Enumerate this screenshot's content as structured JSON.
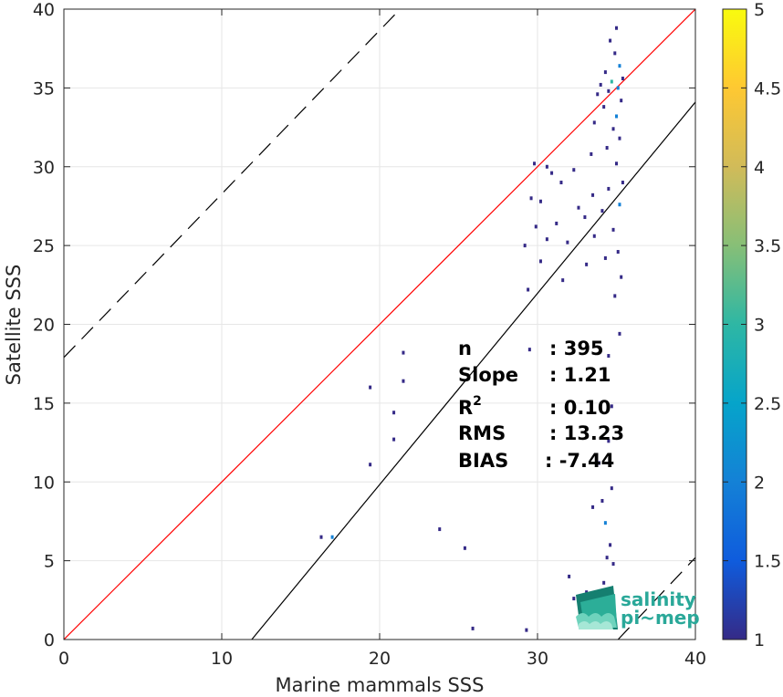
{
  "chart_data": {
    "type": "scatter",
    "xlabel": "Marine mammals SSS",
    "ylabel": "Satellite SSS",
    "xlim": [
      0,
      40
    ],
    "ylim": [
      0,
      40
    ],
    "xticks": [
      0,
      10,
      20,
      30,
      40
    ],
    "yticks": [
      0,
      5,
      10,
      15,
      20,
      25,
      30,
      35,
      40
    ],
    "grid": true,
    "reference_lines": [
      {
        "kind": "identity",
        "color": "#ff0000",
        "style": "solid",
        "x": [
          0,
          40
        ],
        "y": [
          0,
          40
        ]
      },
      {
        "kind": "fit",
        "color": "#000000",
        "style": "solid",
        "x": [
          11.9,
          40
        ],
        "y": [
          0,
          34.1
        ]
      },
      {
        "kind": "upper-bound",
        "color": "#000000",
        "style": "dashed",
        "x": [
          0,
          21.3
        ],
        "y": [
          17.9,
          40
        ]
      },
      {
        "kind": "lower-bound",
        "color": "#000000",
        "style": "dashed",
        "x": [
          35.1,
          40
        ],
        "y": [
          0,
          5.2
        ]
      }
    ],
    "stats": [
      {
        "label": "n",
        "value": ": 395"
      },
      {
        "label": "Slope",
        "value": ": 1.21"
      },
      {
        "label": "R",
        "sup": "2",
        "value": ": 0.10"
      },
      {
        "label": "RMS",
        "value": ": 13.23"
      },
      {
        "label": "BIAS",
        "value": ": -7.44"
      }
    ],
    "colorbar": {
      "min": 1,
      "max": 5,
      "ticks": [
        "1",
        "1.5",
        "2",
        "2.5",
        "3",
        "3.5",
        "4",
        "4.5",
        "5"
      ],
      "colormap": "parula"
    },
    "points": [
      [
        35.0,
        38.8,
        1
      ],
      [
        34.6,
        38.0,
        1
      ],
      [
        34.9,
        37.2,
        1
      ],
      [
        35.2,
        36.4,
        2
      ],
      [
        34.3,
        36.0,
        1
      ],
      [
        35.4,
        35.6,
        1
      ],
      [
        34.7,
        35.4,
        3
      ],
      [
        34.0,
        35.2,
        1
      ],
      [
        35.1,
        35.0,
        2
      ],
      [
        34.5,
        34.8,
        1
      ],
      [
        33.8,
        34.6,
        1
      ],
      [
        35.3,
        34.2,
        1
      ],
      [
        34.2,
        33.8,
        1
      ],
      [
        35.0,
        33.2,
        2
      ],
      [
        33.6,
        32.8,
        1
      ],
      [
        34.8,
        32.4,
        1
      ],
      [
        35.2,
        31.8,
        1
      ],
      [
        34.4,
        31.2,
        1
      ],
      [
        33.4,
        30.8,
        1
      ],
      [
        35.0,
        30.2,
        1
      ],
      [
        30.6,
        30.0,
        1
      ],
      [
        29.8,
        30.2,
        1
      ],
      [
        30.9,
        29.6,
        1
      ],
      [
        32.3,
        29.8,
        1
      ],
      [
        31.5,
        29.0,
        1
      ],
      [
        35.4,
        29.0,
        1
      ],
      [
        34.5,
        28.6,
        1
      ],
      [
        33.5,
        28.2,
        1
      ],
      [
        29.6,
        28.0,
        1
      ],
      [
        30.2,
        27.8,
        1
      ],
      [
        32.6,
        27.4,
        1
      ],
      [
        35.2,
        27.6,
        2
      ],
      [
        34.1,
        27.2,
        1
      ],
      [
        33.0,
        26.8,
        1
      ],
      [
        31.2,
        26.4,
        1
      ],
      [
        29.9,
        26.2,
        1
      ],
      [
        34.8,
        26.0,
        1
      ],
      [
        33.6,
        25.6,
        1
      ],
      [
        30.6,
        25.4,
        1
      ],
      [
        31.9,
        25.2,
        1
      ],
      [
        29.2,
        25.0,
        1
      ],
      [
        35.1,
        24.6,
        1
      ],
      [
        34.3,
        24.2,
        1
      ],
      [
        30.2,
        24.0,
        1
      ],
      [
        33.1,
        23.8,
        1
      ],
      [
        35.3,
        23.0,
        1
      ],
      [
        31.6,
        22.8,
        1
      ],
      [
        29.4,
        22.2,
        1
      ],
      [
        34.9,
        21.8,
        1
      ],
      [
        35.2,
        19.4,
        1
      ],
      [
        29.5,
        18.4,
        1
      ],
      [
        21.5,
        18.2,
        1
      ],
      [
        19.4,
        16.0,
        1
      ],
      [
        21.5,
        16.4,
        1
      ],
      [
        20.9,
        14.4,
        1
      ],
      [
        20.9,
        12.7,
        1
      ],
      [
        19.4,
        11.1,
        1
      ],
      [
        23.8,
        7.0,
        1
      ],
      [
        16.3,
        6.5,
        1
      ],
      [
        17.0,
        6.5,
        2
      ],
      [
        25.4,
        5.8,
        1
      ],
      [
        25.9,
        0.7,
        1
      ],
      [
        29.3,
        0.6,
        1
      ],
      [
        33.5,
        8.4,
        1
      ],
      [
        34.1,
        8.8,
        1
      ],
      [
        34.7,
        9.6,
        1
      ],
      [
        34.3,
        7.4,
        2
      ],
      [
        34.6,
        6.0,
        1
      ],
      [
        34.4,
        5.2,
        1
      ],
      [
        32.3,
        2.6,
        1
      ],
      [
        33.1,
        3.0,
        1
      ],
      [
        33.3,
        2.2,
        1
      ],
      [
        34.8,
        4.8,
        1
      ],
      [
        33.9,
        11.2,
        1
      ],
      [
        34.5,
        12.6,
        1
      ],
      [
        34.7,
        14.8,
        1
      ],
      [
        34.5,
        18.0,
        1
      ],
      [
        32.0,
        4.0,
        1
      ],
      [
        34.2,
        3.6,
        1
      ],
      [
        32.7,
        1.4,
        1
      ]
    ]
  },
  "logo": {
    "line1": "salinity",
    "line2a": "pi",
    "line2b": "mep"
  }
}
